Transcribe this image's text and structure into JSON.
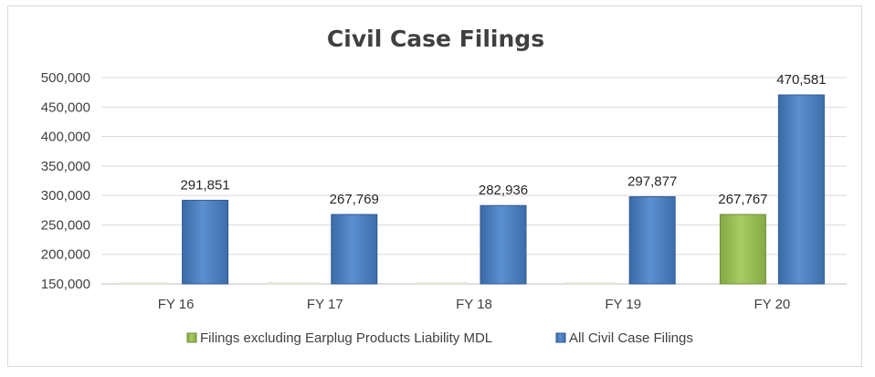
{
  "chart_data": {
    "type": "bar",
    "title": "Civil Case Filings",
    "xlabel": "",
    "ylabel": "",
    "categories": [
      "FY 16",
      "FY 17",
      "FY 18",
      "FY 19",
      "FY 20"
    ],
    "ylim": [
      150000,
      500000
    ],
    "yticks": [
      150000,
      200000,
      250000,
      300000,
      350000,
      400000,
      450000,
      500000
    ],
    "ytick_labels": [
      "150,000",
      "200,000",
      "250,000",
      "300,000",
      "350,000",
      "400,000",
      "450,000",
      "500,000"
    ],
    "grid": true,
    "legend_position": "bottom",
    "series": [
      {
        "name": "Filings excluding Earplug Products Liability MDL",
        "color": "#9bbb59",
        "values": [
          null,
          null,
          null,
          null,
          267767
        ],
        "data_labels": [
          "",
          "",
          "",
          "",
          "267,767"
        ]
      },
      {
        "name": "All Civil Case Filings",
        "color": "#4f81bd",
        "values": [
          291851,
          267769,
          282936,
          297877,
          470581
        ],
        "data_labels": [
          "291,851",
          "267,769",
          "282,936",
          "297,877",
          "470,581"
        ]
      }
    ]
  }
}
